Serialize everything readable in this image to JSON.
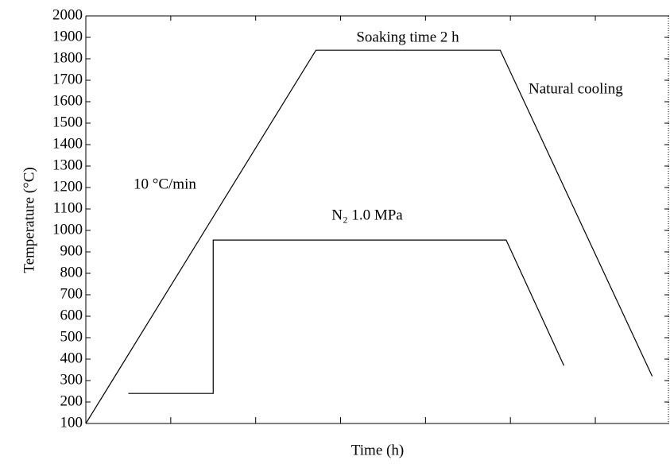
{
  "chart_data": {
    "type": "line",
    "x_label": "Time (h)",
    "y_label": "Temperature (°C)",
    "xlim": [
      0,
      6.87
    ],
    "xticks": [
      1,
      2,
      3,
      4,
      5,
      6
    ],
    "ylim": [
      100,
      2000
    ],
    "yticks": [
      100,
      200,
      300,
      400,
      500,
      600,
      700,
      800,
      900,
      1000,
      1100,
      1200,
      1300,
      1400,
      1500,
      1600,
      1700,
      1800,
      1900,
      2000
    ],
    "series": [
      {
        "color": "#000000",
        "x": [
          0,
          2.71,
          4.88,
          6.67
        ],
        "values": [
          100,
          1840,
          1840,
          320
        ]
      },
      {
        "color": "#000000",
        "x": [
          0.5,
          1.5,
          1.5,
          4.95,
          5.63
        ],
        "values": [
          240,
          240,
          955,
          955,
          370
        ]
      }
    ],
    "annotations": [
      "Soaking time 2 h",
      "Natural cooling",
      "10 °C/min",
      "N₂ 1.0 MPa"
    ]
  }
}
